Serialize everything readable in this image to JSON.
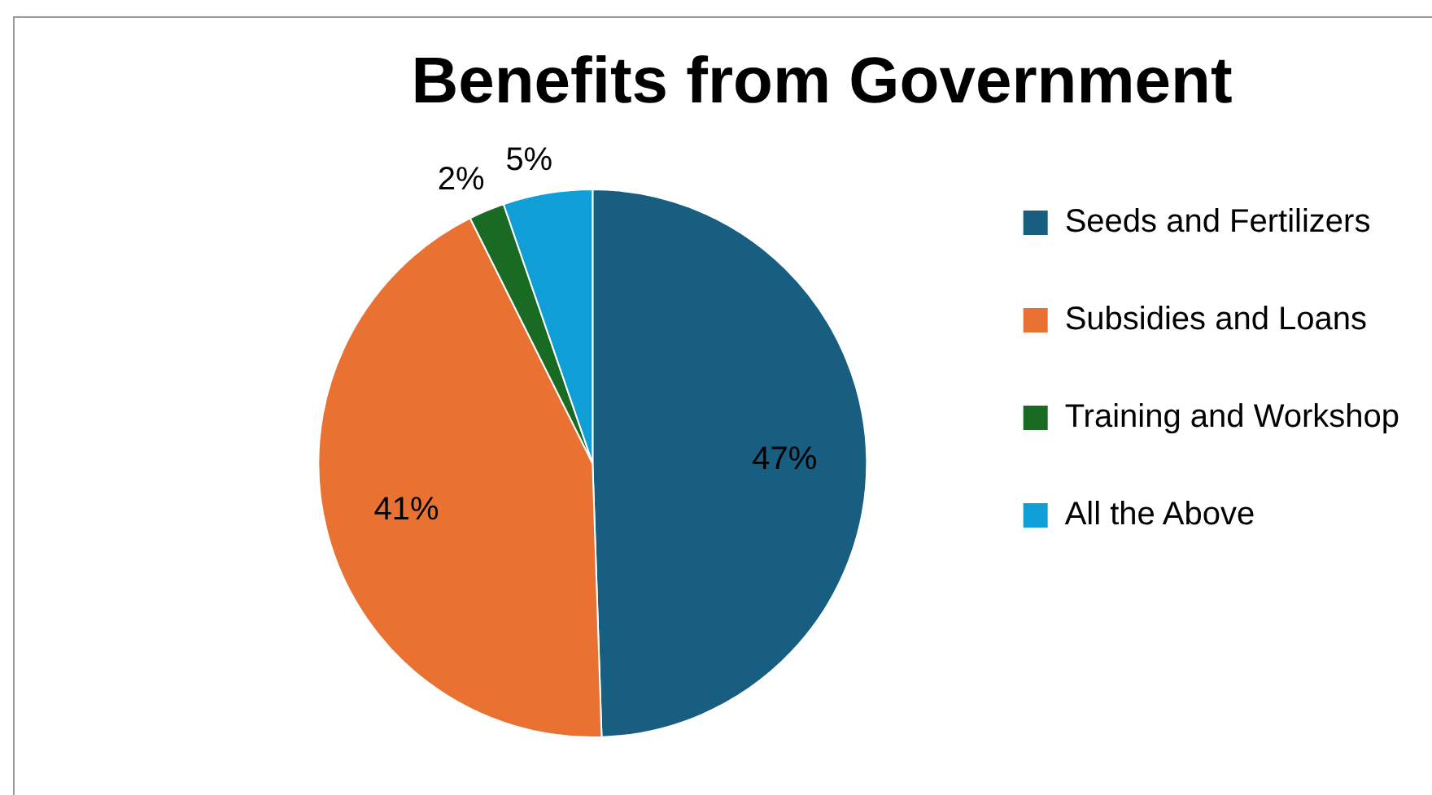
{
  "chart_data": {
    "type": "pie",
    "title": "Benefits from Government",
    "categories": [
      "Seeds and Fertilizers",
      "Subsidies and Loans",
      "Training and Workshop",
      "All the Above"
    ],
    "values": [
      47,
      41,
      2,
      5
    ],
    "colors": [
      "#175e81",
      "#e97132",
      "#196b24",
      "#0f9ed5"
    ],
    "value_labels": [
      "47%",
      "41%",
      "2%",
      "5%"
    ],
    "legend": "right"
  }
}
